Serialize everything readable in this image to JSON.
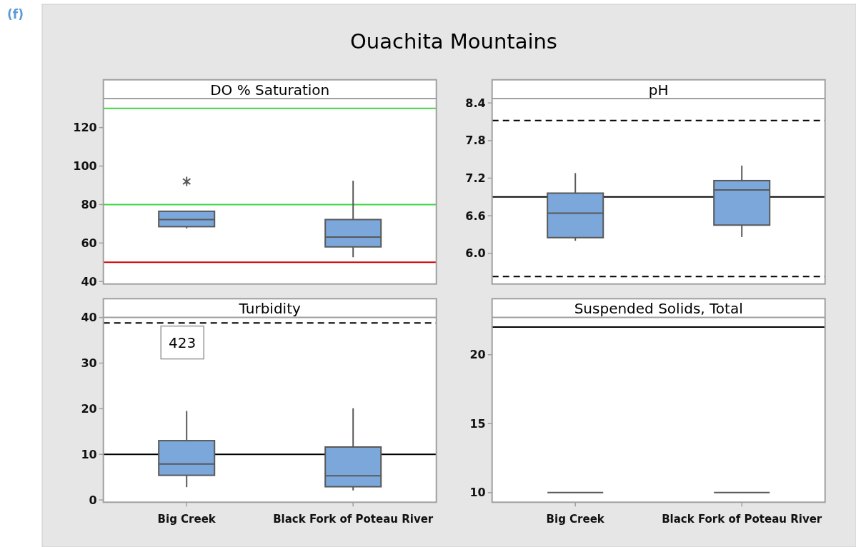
{
  "chart_data": [
    {
      "type": "other",
      "title": "Ouachita Mountains",
      "annotations": [
        "(f)"
      ]
    },
    {
      "type": "box",
      "title": "DO % Saturation",
      "categories": [
        "Big Creek",
        "Black Fork of Poteau River"
      ],
      "color": "#7ba7db",
      "boxes": [
        {
          "low": 67.6,
          "q1": 68.5,
          "median": 72.2,
          "q3": 76.5,
          "high": 76.5,
          "outliers": [
            92
          ]
        },
        {
          "low": 52.6,
          "q1": 58,
          "median": 63.1,
          "q3": 72.2,
          "high": 92.4
        }
      ],
      "ylim": [
        38.7,
        135.1
      ],
      "yticks": [
        40,
        60,
        80,
        100,
        120
      ],
      "tick_labels": "y",
      "ref_lines": [
        {
          "axis": "y",
          "value": 130,
          "color": "#41d441"
        },
        {
          "axis": "y",
          "value": 80,
          "color": "#41d441"
        },
        {
          "axis": "y",
          "value": 50,
          "color": "#d00000"
        }
      ]
    },
    {
      "type": "box",
      "title": "pH",
      "categories": [
        "Big Creek",
        "Black Fork of Poteau River"
      ],
      "color": "#7ba7db",
      "boxes": [
        {
          "low": 6.2,
          "q1": 6.25,
          "median": 6.64,
          "q3": 6.96,
          "high": 7.28
        },
        {
          "low": 6.26,
          "q1": 6.45,
          "median": 7.01,
          "q3": 7.16,
          "high": 7.4
        }
      ],
      "ylim": [
        5.51,
        8.47
      ],
      "yticks": [
        {
          "value": 6,
          "label": "6.0"
        },
        6.6,
        7.2,
        7.8,
        8.4
      ],
      "tick_labels": "y",
      "ref_lines": [
        {
          "axis": "y",
          "value": 8.12,
          "line_style": "dashed"
        },
        {
          "axis": "y",
          "value": 5.63,
          "line_style": "dashed"
        },
        {
          "axis": "y",
          "value": 6.9
        }
      ]
    },
    {
      "type": "box",
      "title": "Turbidity",
      "categories": [
        "Big Creek",
        "Black Fork of Poteau River"
      ],
      "color": "#7ba7db",
      "boxes": [
        {
          "low": 2.8,
          "q1": 5.4,
          "median": 7.9,
          "q3": 13,
          "high": 19.5
        },
        {
          "low": 2.1,
          "q1": 2.9,
          "median": 5.3,
          "q3": 11.6,
          "high": 20.1
        }
      ],
      "ylim": [
        -0.5,
        40
      ],
      "yticks": [
        0,
        10,
        20,
        30,
        40
      ],
      "ref_lines": [
        {
          "axis": "y",
          "value": 38.8,
          "line_style": "dashed"
        },
        {
          "axis": "y",
          "value": 10
        }
      ],
      "annotations": [
        "423"
      ]
    },
    {
      "type": "box",
      "title": "Suspended Solids, Total",
      "categories": [
        "Big Creek",
        "Black Fork of Poteau River"
      ],
      "boxes": [
        {
          "low": 10,
          "q1": 10,
          "median": 10,
          "q3": 10,
          "high": 10
        },
        {
          "low": 10,
          "q1": 10,
          "median": 10,
          "q3": 10,
          "high": 10
        }
      ],
      "ylim": [
        9.3,
        22.7
      ],
      "yticks": [
        10,
        15,
        20
      ],
      "ref_lines": [
        {
          "axis": "y",
          "value": 22
        }
      ]
    }
  ]
}
